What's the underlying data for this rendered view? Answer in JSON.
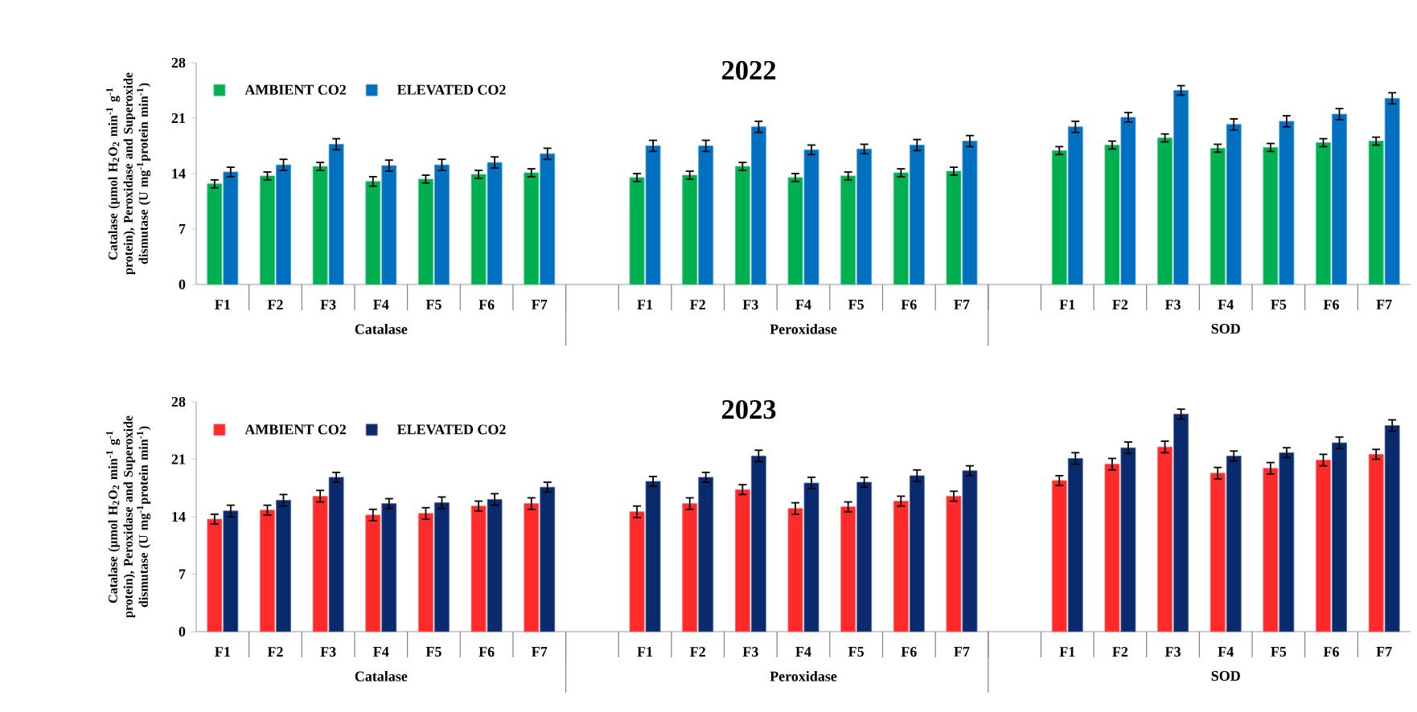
{
  "chart_data": [
    {
      "type": "bar",
      "title": "2022",
      "ylabel": "Catalase (µmol H$_{2}$O$_{2}$ min$^{-1}$ g$^{-1}$ protein), Peroxidase and Superoxide dismutase (U mg$^{-1}$protein min$^{-1}$)",
      "categories": [
        "F1",
        "F2",
        "F3",
        "F4",
        "F5",
        "F6",
        "F7",
        null,
        "F1",
        "F2",
        "F3",
        "F4",
        "F5",
        "F6",
        "F7",
        null,
        "F1",
        "F2",
        "F3",
        "F4",
        "F5",
        "F6",
        "F7"
      ],
      "series": [
        {
          "name": "AMBIENT CO2",
          "color": "#00b050",
          "values": [
            12.7,
            13.7,
            14.9,
            13.0,
            13.3,
            13.9,
            14.1,
            null,
            13.5,
            13.8,
            14.9,
            13.5,
            13.7,
            14.1,
            14.3,
            null,
            16.9,
            17.6,
            18.5,
            17.2,
            17.3,
            17.9,
            18.1
          ],
          "errors": [
            0.5,
            0.5,
            0.5,
            0.6,
            0.5,
            0.5,
            0.5,
            null,
            0.5,
            0.5,
            0.5,
            0.5,
            0.5,
            0.5,
            0.5,
            null,
            0.5,
            0.5,
            0.5,
            0.5,
            0.5,
            0.5,
            0.5
          ]
        },
        {
          "name": "ELEVATED CO2",
          "color": "#0070c0",
          "values": [
            14.2,
            15.1,
            17.7,
            15.0,
            15.1,
            15.4,
            16.5,
            null,
            17.5,
            17.5,
            19.9,
            17.0,
            17.1,
            17.6,
            18.1,
            null,
            19.9,
            21.1,
            24.5,
            20.2,
            20.6,
            21.5,
            23.5
          ],
          "errors": [
            0.6,
            0.7,
            0.7,
            0.7,
            0.7,
            0.7,
            0.7,
            null,
            0.7,
            0.7,
            0.7,
            0.6,
            0.6,
            0.7,
            0.7,
            null,
            0.7,
            0.6,
            0.6,
            0.7,
            0.7,
            0.7,
            0.7
          ]
        }
      ],
      "ylim": [
        0,
        28
      ],
      "yticks": [
        0,
        7,
        14,
        21,
        28
      ],
      "legend": "top left",
      "annotations": [
        "Catalase",
        "Peroxidase",
        "SOD"
      ]
    },
    {
      "type": "bar",
      "title": "2023",
      "ylabel": "Catalase (µmol H$_{2}$O$_{2}$ min$^{-1}$ g$^{-1}$ protein), Peroxidase and Superoxide dismutase (U mg$^{-1}$protein min$^{-1}$)",
      "categories": [
        "F1",
        "F2",
        "F3",
        "F4",
        "F5",
        "F6",
        "F7",
        null,
        "F1",
        "F2",
        "F3",
        "F4",
        "F5",
        "F6",
        "F7",
        null,
        "F1",
        "F2",
        "F3",
        "F4",
        "F5",
        "F6",
        "F7"
      ],
      "series": [
        {
          "name": "AMBIENT CO2",
          "color": "#ff2a2a",
          "values": [
            13.7,
            14.8,
            16.5,
            14.2,
            14.4,
            15.3,
            15.6,
            null,
            14.6,
            15.6,
            17.3,
            15.0,
            15.2,
            15.9,
            16.5,
            null,
            18.4,
            20.4,
            22.5,
            19.3,
            19.9,
            20.9,
            21.6
          ],
          "errors": [
            0.6,
            0.6,
            0.7,
            0.7,
            0.7,
            0.6,
            0.7,
            null,
            0.7,
            0.7,
            0.6,
            0.7,
            0.6,
            0.6,
            0.6,
            null,
            0.6,
            0.7,
            0.7,
            0.7,
            0.7,
            0.7,
            0.6
          ]
        },
        {
          "name": "ELEVATED CO2",
          "color": "#0a2a6e",
          "values": [
            14.7,
            16.0,
            18.8,
            15.6,
            15.7,
            16.1,
            17.6,
            null,
            18.3,
            18.8,
            21.4,
            18.1,
            18.2,
            19.0,
            19.6,
            null,
            21.1,
            22.4,
            26.5,
            21.4,
            21.8,
            23.0,
            25.1
          ],
          "errors": [
            0.7,
            0.7,
            0.6,
            0.6,
            0.7,
            0.7,
            0.6,
            null,
            0.6,
            0.6,
            0.7,
            0.7,
            0.6,
            0.7,
            0.6,
            null,
            0.7,
            0.7,
            0.6,
            0.6,
            0.6,
            0.7,
            0.7
          ]
        }
      ],
      "ylim": [
        0,
        28
      ],
      "yticks": [
        0,
        7,
        14,
        21,
        28
      ],
      "legend": "top left",
      "annotations": [
        "Catalase",
        "Peroxidase",
        "SOD"
      ]
    }
  ]
}
